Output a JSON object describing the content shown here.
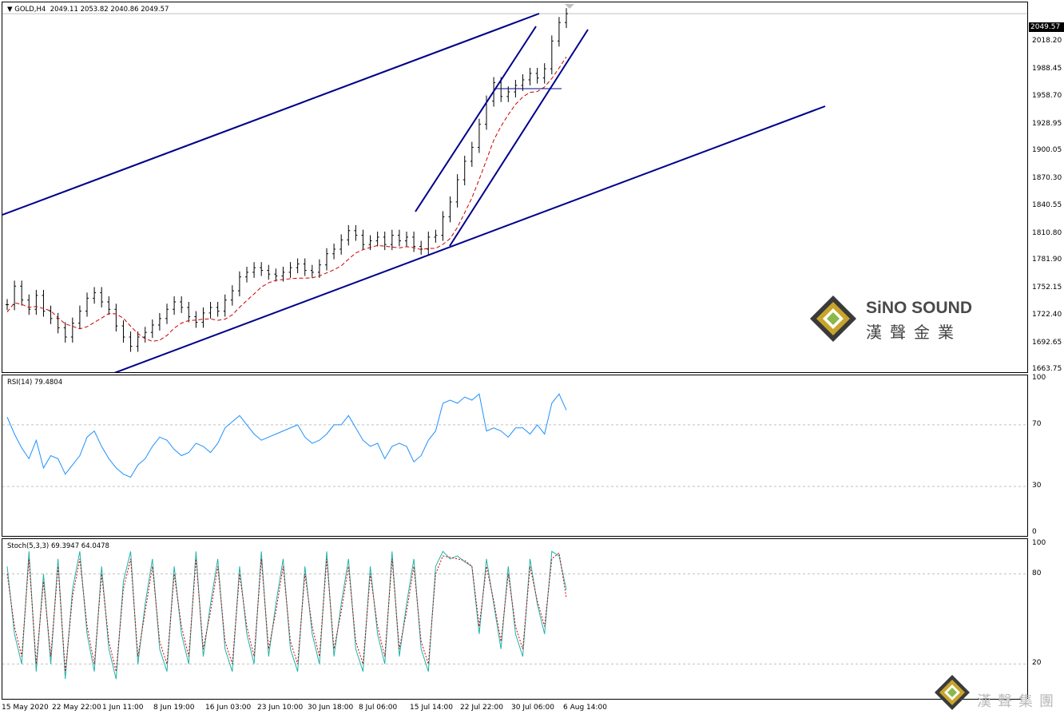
{
  "header": {
    "symbol_label": "GOLD,H4",
    "ohlc": "2049.11 2053.82 2040.86 2049.57",
    "last_price": "2049.57"
  },
  "main_axis": [
    "2018.20",
    "1988.45",
    "1958.70",
    "1928.95",
    "1900.05",
    "1870.30",
    "1840.55",
    "1810.80",
    "1781.90",
    "1752.15",
    "1722.40",
    "1692.65",
    "1663.75"
  ],
  "rsi": {
    "label": "RSI(14) 79.4804",
    "levels": [
      "100",
      "70",
      "30",
      "0"
    ]
  },
  "stoch": {
    "label": "Stoch(5,3,3) 69.3947 64.0478",
    "levels": [
      "100",
      "80",
      "20"
    ]
  },
  "x_labels": [
    "15 May 2020",
    "22 May 22:00",
    "1 Jun 11:00",
    "8 Jun 19:00",
    "16 Jun 03:00",
    "23 Jun 10:00",
    "30 Jun 18:00",
    "8 Jul 06:00",
    "15 Jul 14:00",
    "22 Jul 22:00",
    "30 Jul 06:00",
    "6 Aug 14:00"
  ],
  "logo": {
    "title": "SiNO SOUND",
    "subtitle": "漢聲金業"
  },
  "watermark": {
    "text": "漢聲集團"
  },
  "colors": {
    "candle": "#000000",
    "ma": "#cc0000",
    "trend": "#00008b",
    "rsi": "#1e90ff",
    "stoch_main": "#20b2aa",
    "stoch_signal": "#cc0000",
    "logo_gold": "#c8a52a"
  },
  "chart_data": {
    "type": "line",
    "title": "GOLD,H4",
    "series": [
      {
        "name": "GOLD,H4",
        "values": [
          1735,
          1755,
          1740,
          1730,
          1745,
          1728,
          1720,
          1710,
          1700,
          1715,
          1728,
          1742,
          1748,
          1738,
          1730,
          1712,
          1700,
          1690,
          1700,
          1705,
          1713,
          1720,
          1730,
          1738,
          1732,
          1722,
          1716,
          1726,
          1732,
          1728,
          1740,
          1750,
          1765,
          1770,
          1775,
          1772,
          1768,
          1766,
          1770,
          1775,
          1779,
          1772,
          1770,
          1778,
          1790,
          1795,
          1805,
          1815,
          1810,
          1800,
          1804,
          1808,
          1800,
          1810,
          1804,
          1808,
          1798,
          1795,
          1808,
          1810,
          1830,
          1846,
          1870,
          1890,
          1905,
          1930,
          1955,
          1975,
          1960,
          1965,
          1972,
          1978,
          1985,
          1980,
          1990,
          2020,
          2040,
          2049.57
        ]
      },
      {
        "name": "RSI(14)",
        "values": [
          75,
          64,
          55,
          48,
          60,
          42,
          50,
          48,
          38,
          44,
          50,
          62,
          66,
          56,
          48,
          42,
          38,
          36,
          44,
          48,
          56,
          62,
          60,
          54,
          50,
          52,
          58,
          56,
          52,
          58,
          68,
          72,
          76,
          70,
          64,
          60,
          62,
          64,
          66,
          68,
          70,
          62,
          58,
          60,
          64,
          70,
          70,
          76,
          68,
          60,
          56,
          58,
          48,
          56,
          58,
          56,
          46,
          50,
          60,
          66,
          84,
          86,
          84,
          88,
          86,
          90,
          66,
          68,
          66,
          62,
          68,
          68,
          64,
          70,
          64,
          84,
          90,
          79.48
        ]
      },
      {
        "name": "Stoch(5,3,3) %K",
        "values": [
          85,
          40,
          20,
          95,
          15,
          80,
          20,
          90,
          10,
          70,
          95,
          40,
          15,
          85,
          30,
          10,
          75,
          95,
          20,
          60,
          90,
          30,
          15,
          85,
          40,
          20,
          95,
          25,
          60,
          90,
          30,
          15,
          85,
          40,
          20,
          95,
          25,
          60,
          90,
          30,
          15,
          85,
          40,
          20,
          95,
          25,
          60,
          90,
          30,
          15,
          85,
          40,
          20,
          95,
          25,
          60,
          90,
          30,
          15,
          85,
          95,
          90,
          92,
          88,
          85,
          40,
          90,
          60,
          30,
          85,
          40,
          25,
          90,
          60,
          40,
          95,
          92,
          69.39
        ]
      },
      {
        "name": "Stoch(5,3,3) %D",
        "values": [
          80,
          45,
          25,
          90,
          20,
          75,
          25,
          85,
          15,
          65,
          90,
          45,
          20,
          80,
          35,
          15,
          70,
          90,
          25,
          55,
          85,
          35,
          20,
          80,
          45,
          25,
          90,
          30,
          55,
          85,
          35,
          20,
          80,
          45,
          25,
          90,
          30,
          55,
          85,
          35,
          20,
          80,
          45,
          25,
          90,
          30,
          55,
          85,
          35,
          20,
          80,
          45,
          25,
          90,
          30,
          55,
          85,
          35,
          20,
          80,
          92,
          91,
          90,
          89,
          85,
          45,
          85,
          62,
          35,
          80,
          45,
          30,
          85,
          62,
          45,
          90,
          94,
          64.05
        ]
      }
    ],
    "ylim": [
      1663.75,
      2060
    ],
    "rsi_ylim": [
      0,
      100
    ],
    "stoch_ylim": [
      0,
      100
    ],
    "grid": false
  }
}
